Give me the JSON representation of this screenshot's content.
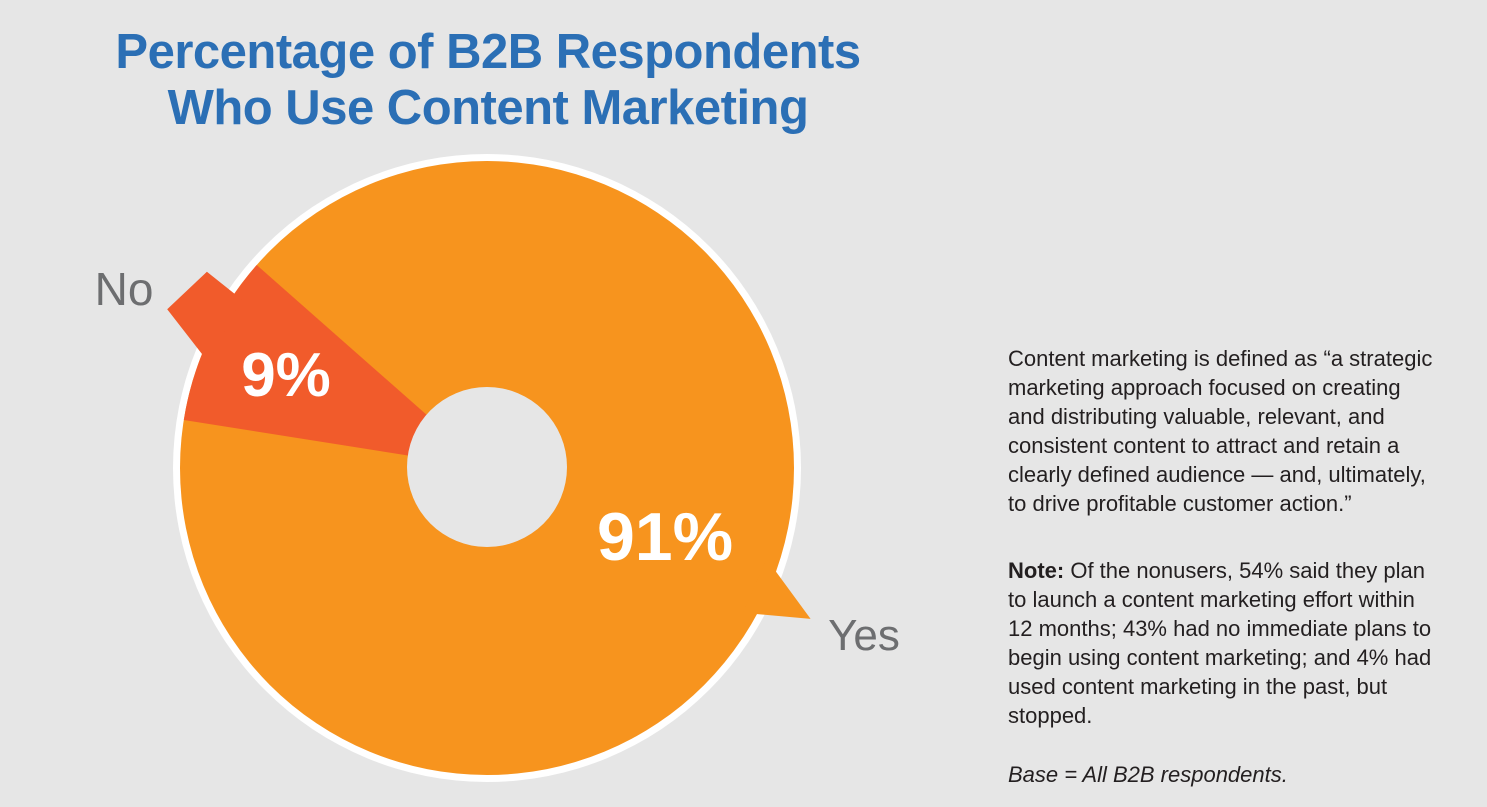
{
  "title": {
    "line1": "Percentage of B2B Respondents",
    "line2": "Who Use Content Marketing"
  },
  "chart_data": {
    "type": "pie",
    "donut": true,
    "title": "Percentage of B2B Respondents Who Use Content Marketing",
    "categories": [
      "Yes",
      "No"
    ],
    "values": [
      91,
      9
    ],
    "unit": "%",
    "value_labels": {
      "yes": "91%",
      "no": "9%"
    },
    "callout_labels": {
      "yes": "Yes",
      "no": "No"
    },
    "legend_position": "callout-tails",
    "colors": {
      "yes_slice": "#F7941E",
      "no_slice": "#F15B2B",
      "rim": "#FFFFFF",
      "hole": "#E6E6E6",
      "value_text": "#FFFFFF",
      "callout_text": "#6D6E70"
    }
  },
  "notes": {
    "definition": "Content marketing is defined as “a strategic marketing approach focused on creating and distributing valuable, relevant, and consistent content to attract and retain a clearly defined audience — and, ultimately, to drive profitable customer action.”",
    "note_label": "Note:",
    "note_text": "Of the nonusers, 54% said they plan to launch a content marketing effort within 12 months; 43% had no immediate plans to begin using content marketing; and 4% had used content marketing in the past, but stopped.",
    "base_note": "Base = All B2B respondents."
  },
  "colors": {
    "background": "#E6E6E6",
    "title_text": "#2B6FB5",
    "body_text": "#231F20"
  }
}
